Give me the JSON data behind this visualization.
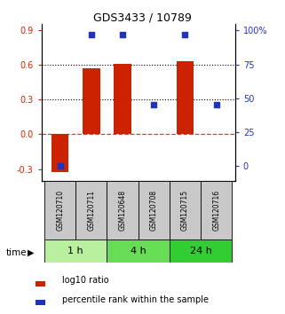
{
  "title": "GDS3433 / 10789",
  "samples": [
    "GSM120710",
    "GSM120711",
    "GSM120648",
    "GSM120708",
    "GSM120715",
    "GSM120716"
  ],
  "log10_ratio": [
    -0.33,
    0.57,
    0.61,
    0.0,
    0.63,
    0.0
  ],
  "percentile_rank": [
    0.0,
    97.0,
    97.0,
    45.0,
    97.0,
    45.0
  ],
  "groups": [
    {
      "label": "1 h",
      "indices": [
        0,
        1
      ],
      "color": "#b8f0a0"
    },
    {
      "label": "4 h",
      "indices": [
        2,
        3
      ],
      "color": "#66dd55"
    },
    {
      "label": "24 h",
      "indices": [
        4,
        5
      ],
      "color": "#33cc33"
    }
  ],
  "ylim_left": [
    -0.4,
    0.96
  ],
  "ylim_right": [
    -10.5,
    105
  ],
  "yticks_left": [
    -0.3,
    0.0,
    0.3,
    0.6,
    0.9
  ],
  "yticks_right": [
    0,
    25,
    50,
    75,
    100
  ],
  "bar_color": "#cc2200",
  "dot_color": "#2233bb",
  "dotted_lines": [
    0.3,
    0.6
  ],
  "bar_width": 0.55,
  "sample_box_color": "#c8c8c8",
  "fig_bg": "#ffffff"
}
